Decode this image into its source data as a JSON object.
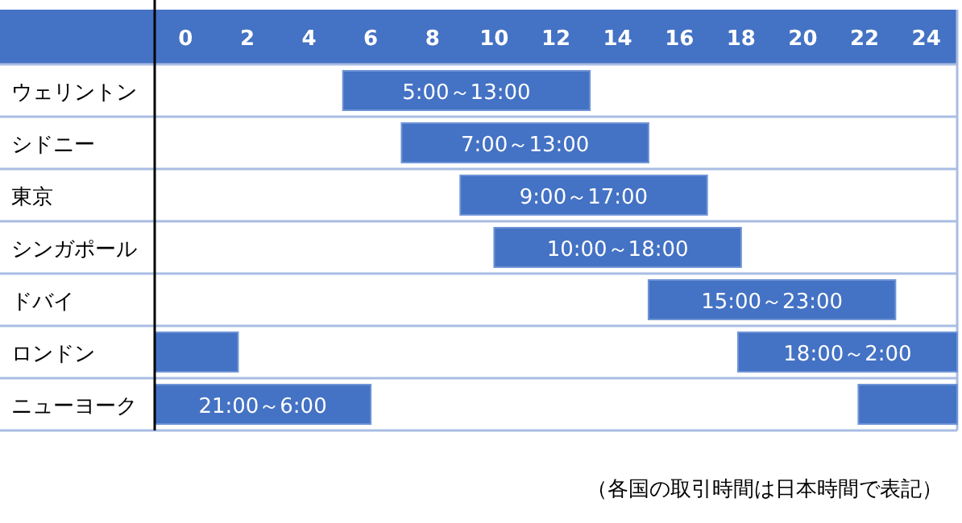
{
  "chart_data": {
    "type": "bar",
    "orientation": "horizontal",
    "categories": [
      "ウェリントン",
      "シドニー",
      "東京",
      "シンガポール",
      "ドバイ",
      "ロンドン",
      "ニューヨーク"
    ],
    "xlim": [
      -1,
      25
    ],
    "grid": "y",
    "xticks": [
      0,
      2,
      4,
      6,
      8,
      10,
      12,
      14,
      16,
      18,
      20,
      22,
      24
    ],
    "series": [
      {
        "color": "#4472c4",
        "base": [
          5.1,
          7,
          8.9,
          10,
          15,
          17.9,
          -1
        ],
        "values": [
          8,
          8,
          8,
          8,
          8,
          7.1,
          7
        ],
        "value_labels": [
          "5:00～13:00",
          "7:00～13:00",
          "9:00～17:00",
          "10:00～18:00",
          "15:00～23:00",
          "18:00～2:00",
          "21:00～6:00"
        ]
      },
      {
        "color": "#4472c4",
        "base": [
          null,
          null,
          null,
          null,
          null,
          -1,
          21.8
        ],
        "values": [
          null,
          null,
          null,
          null,
          null,
          2.7,
          3.2
        ]
      }
    ],
    "annotations": [
      "（各国の取引時間は日本時間で表記）"
    ]
  }
}
